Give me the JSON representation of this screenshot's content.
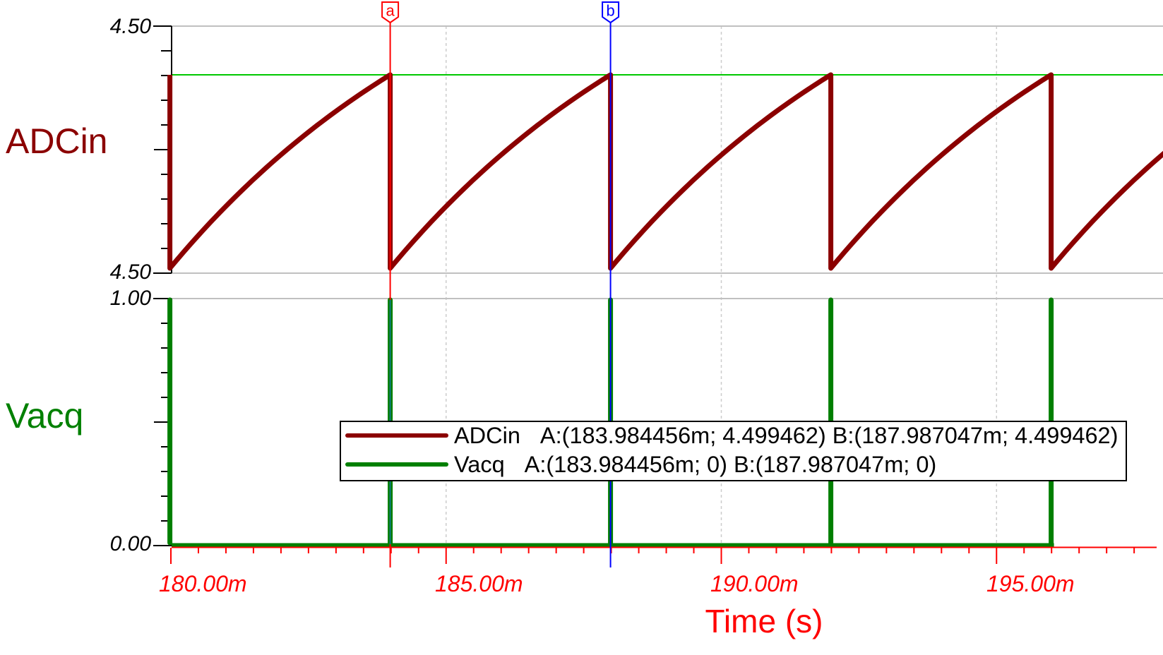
{
  "chart_data": {
    "type": "line",
    "x_axis": {
      "title": "Time (s)",
      "unit": "s",
      "tick_labels": [
        "180.00m",
        "185.00m",
        "190.00m",
        "195.00m"
      ],
      "tick_values_ms": [
        180,
        185,
        190,
        195
      ],
      "minor_step_ms": 0.5,
      "range_ms": [
        179.97,
        198.0
      ]
    },
    "top_plot": {
      "signal": "ADCin",
      "color": "#8B0000",
      "y_top_label": "4.50",
      "y_bottom_label": "4.50",
      "waveform": "exponential-sawtooth",
      "peak_value": 4.499462,
      "peak_line_color": "#00C800",
      "reset_times_ms": [
        179.981865,
        183.984456,
        187.987047,
        191.989638,
        195.992229
      ],
      "period_ms": 4.002591,
      "curve_tau_fraction": 1.5
    },
    "bottom_plot": {
      "signal": "Vacq",
      "color": "#007F00",
      "y_top_label": "1.00",
      "y_bottom_label": "0.00",
      "high": 1,
      "low": 0,
      "pulse_times_ms": [
        179.981865,
        183.984456,
        187.987047,
        191.989638,
        195.992229
      ]
    },
    "cursors": [
      {
        "id": "a",
        "color": "#FF0000",
        "time_ms": 183.984456
      },
      {
        "id": "b",
        "color": "#0000FF",
        "time_ms": 187.987047
      }
    ]
  },
  "labels": {
    "adcin": "ADCin",
    "vacq": "Vacq",
    "y_top_max": "4.50",
    "y_top_min": "4.50",
    "y_bot_max": "1.00",
    "y_bot_min": "0.00",
    "time_axis": "Time (s)"
  },
  "legend": {
    "rows": [
      {
        "name": "ADCin",
        "color": "#8B0000",
        "text": "A:(183.984456m; 4.499462) B:(187.987047m; 4.499462)"
      },
      {
        "name": "Vacq",
        "color": "#007F00",
        "text": "A:(183.984456m; 0) B:(187.987047m; 0)"
      }
    ]
  }
}
